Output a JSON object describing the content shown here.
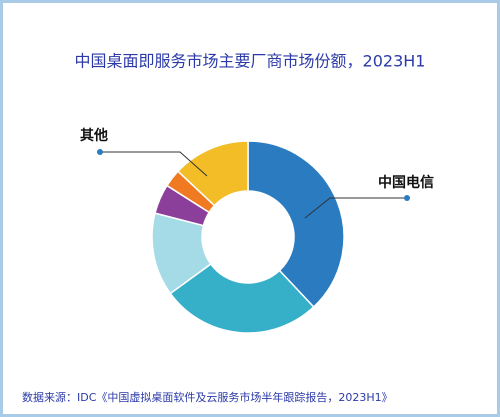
{
  "chart_data": {
    "type": "donut",
    "title": "中国桌面即服务市场主要厂商市场份额，2023H1",
    "categories": [
      "中国电信",
      null,
      null,
      null,
      null,
      "其他"
    ],
    "values": [
      38,
      27,
      14,
      5,
      3,
      13
    ],
    "colors": [
      "#2a7bc0",
      "#36afc9",
      "#a4dbe6",
      "#8b3f9a",
      "#ef7a22",
      "#f2bd27"
    ],
    "source": "数据来源：IDC《中国虚拟桌面软件及云服务市场半年跟踪报告，2023H1》"
  }
}
